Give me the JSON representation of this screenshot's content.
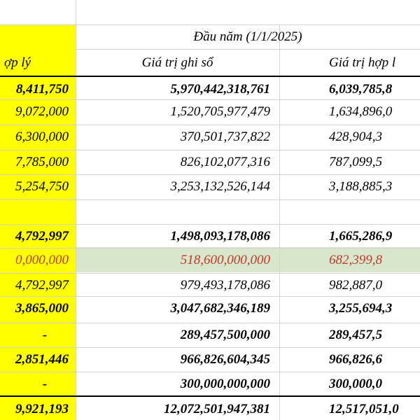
{
  "header": {
    "group_label": "Đầu năm (1/1/2025)",
    "col1_label": "ợp lý",
    "col2_label": "Giá trị ghi sổ",
    "col3_label": "Giá trị hợp l"
  },
  "rows": [
    {
      "c1": "8,411,750",
      "c2": "5,970,442,318,761",
      "c3": "6,039,785,8",
      "bold": true,
      "red": false
    },
    {
      "c1": "9,072,000",
      "c2": "1,520,705,977,479",
      "c3": "1,634,896,0",
      "bold": false,
      "red": false
    },
    {
      "c1": "6,300,000",
      "c2": "370,501,737,822",
      "c3": "428,904,3",
      "bold": false,
      "red": false
    },
    {
      "c1": "7,785,000",
      "c2": "826,102,077,316",
      "c3": "787,099,5",
      "bold": false,
      "red": false
    },
    {
      "c1": "5,254,750",
      "c2": "3,253,132,526,144",
      "c3": "3,188,885,3",
      "bold": false,
      "red": false
    },
    {
      "c1": "",
      "c2": "",
      "c3": "",
      "bold": false,
      "red": false
    },
    {
      "c1": "4,792,997",
      "c2": "1,498,093,178,086",
      "c3": "1,665,286,9",
      "bold": true,
      "red": false
    },
    {
      "c1": "0,000,000",
      "c2": "518,600,000,000",
      "c3": "682,399,8",
      "bold": false,
      "red": true
    },
    {
      "c1": "4,792,997",
      "c2": "979,493,178,086",
      "c3": "982,887,0",
      "bold": false,
      "red": false
    },
    {
      "c1": "3,865,000",
      "c2": "3,047,682,346,189",
      "c3": "3,255,694,3",
      "bold": true,
      "red": false
    },
    {
      "c1": "-",
      "c2": "289,457,500,000",
      "c3": "289,457,5",
      "bold": true,
      "red": false
    },
    {
      "c1": "2,851,446",
      "c2": "966,826,604,345",
      "c3": "966,826,6",
      "bold": true,
      "red": false
    },
    {
      "c1": "-",
      "c2": "300,000,000,000",
      "c3": "300,000,0",
      "bold": true,
      "red": false
    },
    {
      "c1": "9,921,193",
      "c2": "12,072,501,947,381",
      "c3": "12,517,051,0",
      "bold": true,
      "red": false
    }
  ]
}
